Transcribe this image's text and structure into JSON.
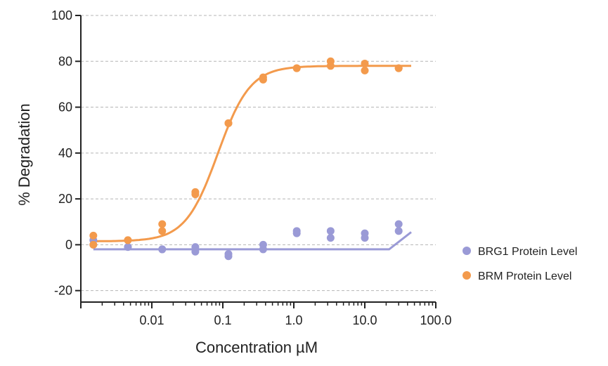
{
  "chart_data": {
    "type": "scatter",
    "xlabel": "Concentration µM",
    "ylabel": "% Degradation",
    "xscale": "log",
    "xlim": [
      0.001,
      100
    ],
    "ylim": [
      -25,
      100
    ],
    "grid": "horizontal dashed",
    "legend_placement": "right",
    "y_ticks": [
      "100",
      "80",
      "60",
      "40",
      "20",
      "0",
      "-20"
    ],
    "x_ticks": [
      "0.01",
      "0.1",
      "1.0",
      "10.0",
      "100.0"
    ],
    "series": [
      {
        "name": "BRG1 Protein Level",
        "color": "#9a9ad6",
        "points": [
          [
            0.0015,
            2
          ],
          [
            0.0015,
            0
          ],
          [
            0.0046,
            -1
          ],
          [
            0.0046,
            -1
          ],
          [
            0.014,
            -2
          ],
          [
            0.014,
            -2
          ],
          [
            0.041,
            -1
          ],
          [
            0.041,
            -3
          ],
          [
            0.12,
            -4
          ],
          [
            0.12,
            -5
          ],
          [
            0.37,
            0
          ],
          [
            0.37,
            -2
          ],
          [
            1.1,
            6
          ],
          [
            1.1,
            5
          ],
          [
            3.3,
            6
          ],
          [
            3.3,
            3
          ],
          [
            10,
            5
          ],
          [
            10,
            3
          ],
          [
            30,
            9
          ],
          [
            30,
            6
          ]
        ],
        "fit": [
          [
            0.0015,
            -2
          ],
          [
            0.01,
            -2
          ],
          [
            0.1,
            -2
          ],
          [
            1,
            -2
          ],
          [
            10,
            -2
          ],
          [
            22,
            -2
          ],
          [
            45,
            5.5
          ]
        ]
      },
      {
        "name": "BRM Protein Level",
        "color": "#f39a4c",
        "points": [
          [
            0.0015,
            4
          ],
          [
            0.0015,
            0
          ],
          [
            0.0046,
            2
          ],
          [
            0.0046,
            2
          ],
          [
            0.014,
            9
          ],
          [
            0.014,
            6
          ],
          [
            0.041,
            23
          ],
          [
            0.041,
            22
          ],
          [
            0.12,
            53
          ],
          [
            0.12,
            53
          ],
          [
            0.37,
            73
          ],
          [
            0.37,
            72
          ],
          [
            1.1,
            77
          ],
          [
            1.1,
            77
          ],
          [
            3.3,
            80
          ],
          [
            3.3,
            78
          ],
          [
            10,
            79
          ],
          [
            10,
            76
          ],
          [
            30,
            77
          ],
          [
            30,
            77
          ]
        ],
        "fit_params": {
          "bottom": 1.5,
          "top": 78,
          "ec50": 0.085,
          "hill": 1.9,
          "x_start": 0.0015,
          "x_end": 45
        }
      }
    ]
  }
}
